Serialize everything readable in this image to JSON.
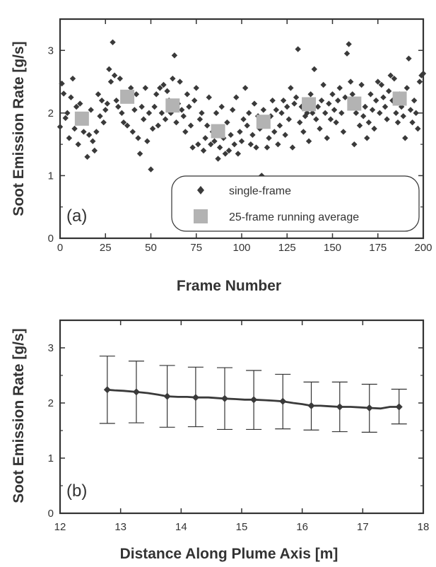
{
  "chart_data": [
    {
      "type": "scatter",
      "panel_label": "(a)",
      "xlabel": "Frame Number",
      "ylabel": "Soot Emission Rate [g/s]",
      "xlim": [
        0,
        200
      ],
      "ylim": [
        0,
        3.5
      ],
      "xticks": [
        "0",
        "25",
        "50",
        "75",
        "100",
        "125",
        "150",
        "175",
        "200"
      ],
      "yticks": [
        "0",
        "1",
        "2",
        "3"
      ],
      "legend_position": "bottom-right",
      "series": [
        {
          "name": "single-frame",
          "marker": "diamond",
          "color": "#3a3a3a",
          "points": [
            [
              0,
              1.78
            ],
            [
              1,
              2.47
            ],
            [
              2,
              2.31
            ],
            [
              3,
              1.92
            ],
            [
              4,
              2.0
            ],
            [
              5,
              1.6
            ],
            [
              6,
              2.25
            ],
            [
              7,
              2.55
            ],
            [
              8,
              1.75
            ],
            [
              9,
              2.1
            ],
            [
              10,
              1.5
            ],
            [
              11,
              2.15
            ],
            [
              12,
              1.85
            ],
            [
              13,
              1.7
            ],
            [
              14,
              1.95
            ],
            [
              15,
              1.3
            ],
            [
              16,
              1.65
            ],
            [
              17,
              2.05
            ],
            [
              18,
              1.55
            ],
            [
              19,
              1.4
            ],
            [
              20,
              1.7
            ],
            [
              21,
              2.3
            ],
            [
              22,
              1.95
            ],
            [
              23,
              2.2
            ],
            [
              24,
              1.85
            ],
            [
              25,
              2.05
            ],
            [
              26,
              2.15
            ],
            [
              27,
              2.7
            ],
            [
              28,
              2.5
            ],
            [
              29,
              3.13
            ],
            [
              30,
              2.6
            ],
            [
              31,
              2.2
            ],
            [
              32,
              2.1
            ],
            [
              33,
              2.55
            ],
            [
              34,
              2.0
            ],
            [
              35,
              1.85
            ],
            [
              36,
              2.3
            ],
            [
              37,
              1.8
            ],
            [
              38,
              2.25
            ],
            [
              39,
              2.4
            ],
            [
              40,
              1.7
            ],
            [
              41,
              2.05
            ],
            [
              42,
              2.3
            ],
            [
              43,
              1.6
            ],
            [
              44,
              1.35
            ],
            [
              45,
              2.1
            ],
            [
              46,
              1.9
            ],
            [
              47,
              2.4
            ],
            [
              48,
              1.55
            ],
            [
              49,
              2.0
            ],
            [
              50,
              1.1
            ],
            [
              51,
              1.75
            ],
            [
              52,
              2.1
            ],
            [
              53,
              2.3
            ],
            [
              54,
              1.8
            ],
            [
              55,
              2.4
            ],
            [
              56,
              2.0
            ],
            [
              57,
              2.45
            ],
            [
              58,
              1.9
            ],
            [
              59,
              2.35
            ],
            [
              60,
              2.2
            ],
            [
              61,
              2.0
            ],
            [
              62,
              2.55
            ],
            [
              63,
              2.92
            ],
            [
              64,
              1.85
            ],
            [
              65,
              2.15
            ],
            [
              66,
              2.5
            ],
            [
              67,
              2.05
            ],
            [
              68,
              1.95
            ],
            [
              69,
              1.7
            ],
            [
              70,
              2.3
            ],
            [
              71,
              2.1
            ],
            [
              72,
              1.8
            ],
            [
              73,
              1.45
            ],
            [
              74,
              2.2
            ],
            [
              75,
              2.4
            ],
            [
              76,
              1.5
            ],
            [
              77,
              1.9
            ],
            [
              78,
              2.0
            ],
            [
              79,
              1.4
            ],
            [
              80,
              1.6
            ],
            [
              81,
              1.8
            ],
            [
              82,
              2.25
            ],
            [
              83,
              1.5
            ],
            [
              84,
              1.7
            ],
            [
              85,
              1.55
            ],
            [
              86,
              2.0
            ],
            [
              87,
              1.27
            ],
            [
              88,
              1.45
            ],
            [
              89,
              2.1
            ],
            [
              90,
              1.6
            ],
            [
              91,
              1.35
            ],
            [
              92,
              1.85
            ],
            [
              93,
              1.4
            ],
            [
              94,
              1.65
            ],
            [
              95,
              2.05
            ],
            [
              96,
              1.5
            ],
            [
              97,
              2.25
            ],
            [
              98,
              1.35
            ],
            [
              99,
              1.7
            ],
            [
              100,
              1.55
            ],
            [
              101,
              1.9
            ],
            [
              102,
              2.4
            ],
            [
              103,
              1.8
            ],
            [
              104,
              2.0
            ],
            [
              105,
              1.5
            ],
            [
              106,
              1.65
            ],
            [
              107,
              2.15
            ],
            [
              108,
              1.45
            ],
            [
              109,
              1.95
            ],
            [
              110,
              1.75
            ],
            [
              111,
              1.0
            ],
            [
              112,
              2.05
            ],
            [
              113,
              1.85
            ],
            [
              114,
              1.45
            ],
            [
              115,
              1.6
            ],
            [
              116,
              1.95
            ],
            [
              117,
              2.2
            ],
            [
              118,
              1.7
            ],
            [
              119,
              2.05
            ],
            [
              120,
              1.5
            ],
            [
              121,
              1.8
            ],
            [
              122,
              2.0
            ],
            [
              123,
              2.2
            ],
            [
              124,
              1.65
            ],
            [
              125,
              2.1
            ],
            [
              126,
              1.9
            ],
            [
              127,
              2.4
            ],
            [
              128,
              1.45
            ],
            [
              129,
              2.15
            ],
            [
              130,
              2.25
            ],
            [
              131,
              3.02
            ],
            [
              132,
              1.85
            ],
            [
              133,
              2.1
            ],
            [
              134,
              1.7
            ],
            [
              135,
              1.95
            ],
            [
              136,
              2.0
            ],
            [
              137,
              1.55
            ],
            [
              138,
              2.3
            ],
            [
              139,
              2.0
            ],
            [
              140,
              2.7
            ],
            [
              141,
              1.9
            ],
            [
              142,
              2.1
            ],
            [
              143,
              1.75
            ],
            [
              144,
              2.2
            ],
            [
              145,
              2.45
            ],
            [
              146,
              2.0
            ],
            [
              147,
              1.6
            ],
            [
              148,
              2.15
            ],
            [
              149,
              1.9
            ],
            [
              150,
              2.3
            ],
            [
              151,
              2.05
            ],
            [
              152,
              1.85
            ],
            [
              153,
              2.2
            ],
            [
              154,
              2.4
            ],
            [
              155,
              2.0
            ],
            [
              156,
              1.7
            ],
            [
              157,
              2.25
            ],
            [
              158,
              2.95
            ],
            [
              159,
              3.1
            ],
            [
              160,
              2.5
            ],
            [
              161,
              2.3
            ],
            [
              162,
              1.5
            ],
            [
              163,
              2.0
            ],
            [
              164,
              2.15
            ],
            [
              165,
              1.8
            ],
            [
              166,
              2.45
            ],
            [
              167,
              1.95
            ],
            [
              168,
              2.1
            ],
            [
              169,
              1.6
            ],
            [
              170,
              1.85
            ],
            [
              171,
              2.3
            ],
            [
              172,
              2.05
            ],
            [
              173,
              1.75
            ],
            [
              174,
              2.2
            ],
            [
              175,
              2.5
            ],
            [
              176,
              2.0
            ],
            [
              177,
              2.45
            ],
            [
              178,
              2.25
            ],
            [
              179,
              2.1
            ],
            [
              180,
              1.9
            ],
            [
              181,
              2.35
            ],
            [
              182,
              2.6
            ],
            [
              183,
              2.2
            ],
            [
              184,
              2.55
            ],
            [
              185,
              2.0
            ],
            [
              186,
              1.85
            ],
            [
              187,
              2.3
            ],
            [
              188,
              2.1
            ],
            [
              189,
              1.95
            ],
            [
              190,
              1.6
            ],
            [
              191,
              2.4
            ],
            [
              192,
              2.87
            ],
            [
              193,
              2.05
            ],
            [
              194,
              1.85
            ],
            [
              195,
              2.2
            ],
            [
              196,
              2.0
            ],
            [
              197,
              1.75
            ],
            [
              198,
              2.5
            ],
            [
              199,
              2.6
            ],
            [
              200,
              2.63
            ]
          ]
        },
        {
          "name": "25-frame running average",
          "marker": "square",
          "color": "#b3b3b3",
          "points": [
            [
              12,
              1.91
            ],
            [
              37,
              2.26
            ],
            [
              62,
              2.12
            ],
            [
              87,
              1.71
            ],
            [
              112,
              1.86
            ],
            [
              137,
              2.14
            ],
            [
              162,
              2.15
            ],
            [
              187,
              2.23
            ]
          ]
        }
      ]
    },
    {
      "type": "line",
      "panel_label": "(b)",
      "xlabel": "Distance Along Plume Axis [m]",
      "ylabel": "Soot Emission Rate [g/s]",
      "xlim": [
        12,
        18
      ],
      "ylim": [
        0,
        3.5
      ],
      "xticks": [
        "12",
        "13",
        "14",
        "15",
        "16",
        "17",
        "18"
      ],
      "yticks": [
        "0",
        "1",
        "2",
        "3"
      ],
      "series": [
        {
          "marker": "diamond",
          "color": "#3a3a3a",
          "x": [
            12.78,
            12.9,
            13.05,
            13.26,
            13.45,
            13.62,
            13.77,
            13.95,
            14.1,
            14.24,
            14.45,
            14.72,
            14.9,
            15.05,
            15.2,
            15.4,
            15.55,
            15.68,
            15.85,
            16.0,
            16.15,
            16.3,
            16.45,
            16.62,
            16.8,
            16.95,
            17.11,
            17.3,
            17.45,
            17.6
          ],
          "y": [
            2.24,
            2.23,
            2.22,
            2.2,
            2.18,
            2.15,
            2.12,
            2.11,
            2.11,
            2.1,
            2.1,
            2.08,
            2.07,
            2.06,
            2.06,
            2.05,
            2.04,
            2.03,
            2.0,
            1.98,
            1.95,
            1.95,
            1.94,
            1.93,
            1.93,
            1.92,
            1.91,
            1.9,
            1.93,
            1.93
          ]
        }
      ],
      "error_bars": [
        {
          "x": 12.78,
          "y": 2.24,
          "low": 1.63,
          "high": 2.85
        },
        {
          "x": 13.26,
          "y": 2.2,
          "low": 1.64,
          "high": 2.76
        },
        {
          "x": 13.77,
          "y": 2.12,
          "low": 1.56,
          "high": 2.68
        },
        {
          "x": 14.24,
          "y": 2.1,
          "low": 1.57,
          "high": 2.65
        },
        {
          "x": 14.72,
          "y": 2.08,
          "low": 1.52,
          "high": 2.64
        },
        {
          "x": 15.2,
          "y": 2.06,
          "low": 1.52,
          "high": 2.59
        },
        {
          "x": 15.68,
          "y": 2.03,
          "low": 1.53,
          "high": 2.52
        },
        {
          "x": 16.15,
          "y": 1.95,
          "low": 1.51,
          "high": 2.38
        },
        {
          "x": 16.62,
          "y": 1.93,
          "low": 1.48,
          "high": 2.38
        },
        {
          "x": 17.11,
          "y": 1.91,
          "low": 1.47,
          "high": 2.34
        },
        {
          "x": 17.6,
          "y": 1.93,
          "low": 1.62,
          "high": 2.25
        }
      ]
    }
  ]
}
